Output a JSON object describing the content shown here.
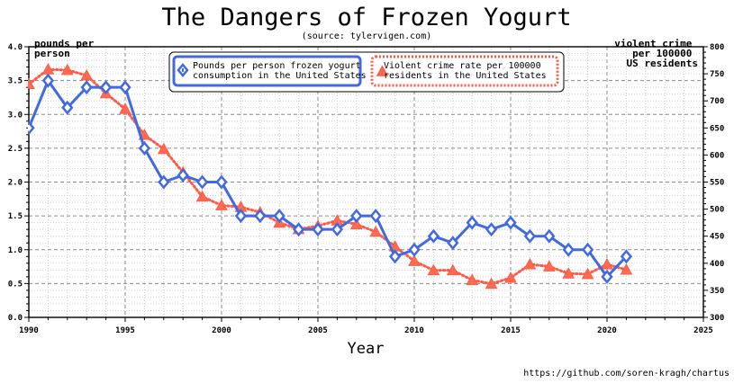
{
  "colors": {
    "series_frozen_yogurt": "#4169e1",
    "series_violent_crime": "#ff5a45",
    "grid": "#999999",
    "axis": "#000000"
  },
  "chart_data": {
    "type": "line",
    "title": "The Dangers of Frozen Yogurt",
    "subtitle": "(source: tylervigen.com)",
    "xlabel": "Year",
    "ylabel_left": "pounds per person",
    "ylabel_left_lines": [
      "pounds per",
      "person"
    ],
    "ylabel_right": "violent crime per 100000 US residents",
    "ylabel_right_lines": [
      "violent crime",
      "per 100000",
      "US residents"
    ],
    "xlim": [
      1990,
      2025
    ],
    "ylim_left": [
      0,
      4.0
    ],
    "ylim_right": [
      300,
      800
    ],
    "x_ticks": [
      "1990",
      "1995",
      "2000",
      "2005",
      "2010",
      "2015",
      "2020",
      "2025"
    ],
    "y_left_ticks": [
      "0.0",
      "0.5",
      "1.0",
      "1.5",
      "2.0",
      "2.5",
      "3.0",
      "3.5",
      "4.0"
    ],
    "y_right_ticks": [
      "300",
      "350",
      "400",
      "450",
      "500",
      "550",
      "600",
      "650",
      "700",
      "750",
      "800"
    ],
    "grid": true,
    "legend_placement": "top",
    "series": [
      {
        "name": "Pounds per person frozen yogurt consumption in the United States",
        "name_lines": [
          "Pounds per person frozen yogurt",
          "consumption in the United States"
        ],
        "axis": "left",
        "marker": "diamond",
        "line": "solid",
        "x": [
          1990,
          1991,
          1992,
          1993,
          1994,
          1995,
          1996,
          1997,
          1998,
          1999,
          2000,
          2001,
          2002,
          2003,
          2004,
          2005,
          2006,
          2007,
          2008,
          2009,
          2010,
          2011,
          2012,
          2013,
          2014,
          2015,
          2016,
          2017,
          2018,
          2019,
          2020,
          2021
        ],
        "values": [
          2.8,
          3.5,
          3.1,
          3.4,
          3.4,
          3.4,
          2.5,
          2.0,
          2.1,
          2.0,
          2.0,
          1.5,
          1.5,
          1.5,
          1.3,
          1.3,
          1.3,
          1.5,
          1.5,
          0.9,
          1.0,
          1.2,
          1.1,
          1.4,
          1.3,
          1.4,
          1.2,
          1.2,
          1.0,
          1.0,
          0.6,
          0.9
        ]
      },
      {
        "name": "Violent crime rate per 100000 residents in the United States",
        "name_lines": [
          "Violent crime rate per 100000",
          "residents in the United States"
        ],
        "axis": "right",
        "marker": "triangle",
        "line": "dotted",
        "x": [
          1990,
          1991,
          1992,
          1993,
          1994,
          1995,
          1996,
          1997,
          1998,
          1999,
          2000,
          2001,
          2002,
          2003,
          2004,
          2005,
          2006,
          2007,
          2008,
          2009,
          2010,
          2011,
          2012,
          2013,
          2014,
          2015,
          2016,
          2017,
          2018,
          2019,
          2020,
          2021
        ],
        "values": [
          731,
          758,
          757,
          747,
          714,
          685,
          637,
          611,
          568,
          523,
          507,
          504,
          494,
          475,
          463,
          469,
          479,
          472,
          458,
          431,
          404,
          387,
          387,
          369,
          362,
          373,
          398,
          394,
          381,
          380,
          398,
          388
        ]
      }
    ]
  },
  "footer": {
    "credit": "https://github.com/soren-kragh/chartus"
  }
}
